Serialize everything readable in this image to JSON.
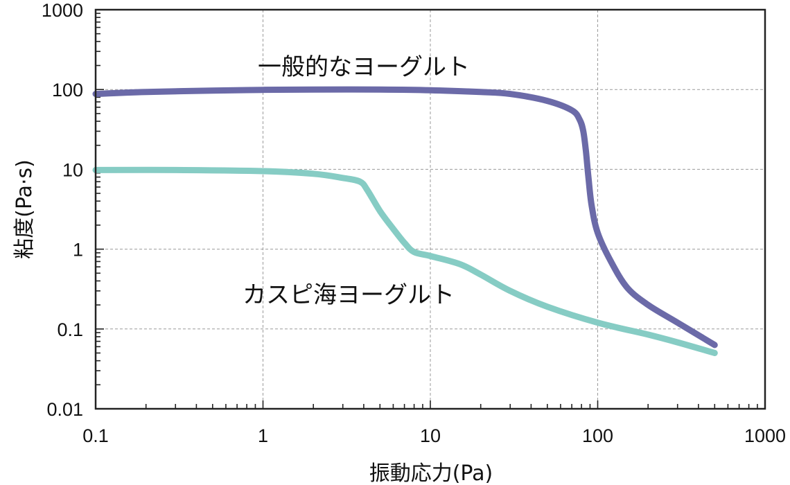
{
  "chart_data": {
    "type": "line",
    "title": "",
    "xlabel": "振動応力(Pa)",
    "ylabel": "粘度(Pa·s)",
    "x_scale": "log",
    "y_scale": "log",
    "xlim": [
      0.1,
      1000
    ],
    "ylim": [
      0.01,
      1000
    ],
    "x_ticks": [
      "0.1",
      "1",
      "10",
      "100",
      "1000"
    ],
    "y_ticks": [
      "0.01",
      "0.1",
      "1",
      "10",
      "100",
      "1000"
    ],
    "grid": true,
    "series": [
      {
        "name": "一般的なヨーグルト",
        "color": "#6b6aa8",
        "points": [
          [
            0.1,
            88
          ],
          [
            0.2,
            93
          ],
          [
            0.5,
            97
          ],
          [
            1,
            99
          ],
          [
            2,
            100
          ],
          [
            5,
            100
          ],
          [
            10,
            98
          ],
          [
            20,
            93
          ],
          [
            30,
            88
          ],
          [
            50,
            72
          ],
          [
            70,
            55
          ],
          [
            78,
            42
          ],
          [
            82,
            30
          ],
          [
            85,
            17
          ],
          [
            88,
            8
          ],
          [
            92,
            3.5
          ],
          [
            100,
            1.6
          ],
          [
            120,
            0.7
          ],
          [
            150,
            0.33
          ],
          [
            200,
            0.2
          ],
          [
            300,
            0.12
          ],
          [
            500,
            0.063
          ]
        ]
      },
      {
        "name": "カスピ海ヨーグルト",
        "color": "#86ccc4",
        "points": [
          [
            0.1,
            9.8
          ],
          [
            0.3,
            9.8
          ],
          [
            1,
            9.5
          ],
          [
            2,
            8.8
          ],
          [
            3,
            7.8
          ],
          [
            3.8,
            7
          ],
          [
            4.2,
            5.5
          ],
          [
            5,
            3
          ],
          [
            6,
            1.8
          ],
          [
            7,
            1.2
          ],
          [
            8,
            0.92
          ],
          [
            10,
            0.82
          ],
          [
            15,
            0.65
          ],
          [
            20,
            0.48
          ],
          [
            30,
            0.3
          ],
          [
            50,
            0.19
          ],
          [
            100,
            0.12
          ],
          [
            200,
            0.085
          ],
          [
            300,
            0.068
          ],
          [
            500,
            0.05
          ]
        ]
      }
    ],
    "annotations": [
      {
        "text": "一般的なヨーグルト",
        "series": 0
      },
      {
        "text": "カスピ海ヨーグルト",
        "series": 1
      }
    ]
  }
}
